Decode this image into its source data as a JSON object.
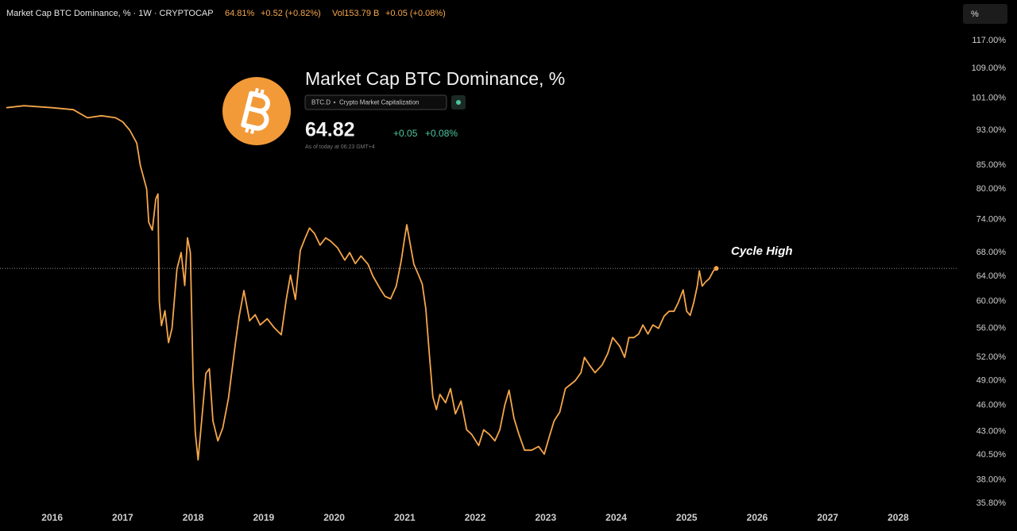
{
  "chart_data": {
    "type": "line",
    "title": "Market Cap BTC Dominance, %",
    "header": {
      "symbol": "Market Cap BTC Dominance, % · 1W · CRYPTOCAP",
      "last": "64.81%",
      "change": "+0.52 (+0.82%)",
      "volume": "Vol153.79 B",
      "volume_change": "+0.05 (+0.08%)"
    },
    "scale_button": "%",
    "card": {
      "ticker": "BTC.D",
      "source": "Crypto Market Capitalization",
      "price": "64.82",
      "change": "+0.05",
      "change_pct": "+0.08%",
      "timestamp": "As of today at 06:23 GMT+4"
    },
    "annotation": "Cycle High",
    "color": "#f5a64a",
    "log_scale": true,
    "x": [
      2015.35,
      2015.6,
      2016.0,
      2016.3,
      2016.5,
      2016.7,
      2016.9,
      2017.0,
      2017.1,
      2017.2,
      2017.25,
      2017.34,
      2017.37,
      2017.42,
      2017.47,
      2017.5,
      2017.52,
      2017.55,
      2017.6,
      2017.65,
      2017.7,
      2017.77,
      2017.83,
      2017.88,
      2017.92,
      2017.96,
      2018.0,
      2018.03,
      2018.07,
      2018.12,
      2018.18,
      2018.23,
      2018.28,
      2018.35,
      2018.42,
      2018.5,
      2018.6,
      2018.65,
      2018.72,
      2018.8,
      2018.88,
      2018.95,
      2019.05,
      2019.15,
      2019.25,
      2019.32,
      2019.38,
      2019.45,
      2019.52,
      2019.58,
      2019.65,
      2019.72,
      2019.8,
      2019.88,
      2019.95,
      2020.05,
      2020.15,
      2020.22,
      2020.3,
      2020.38,
      2020.48,
      2020.55,
      2020.65,
      2020.72,
      2020.8,
      2020.88,
      2020.95,
      2021.0,
      2021.03,
      2021.08,
      2021.13,
      2021.2,
      2021.25,
      2021.3,
      2021.35,
      2021.4,
      2021.45,
      2021.5,
      2021.58,
      2021.65,
      2021.72,
      2021.8,
      2021.88,
      2021.95,
      2022.05,
      2022.12,
      2022.2,
      2022.28,
      2022.35,
      2022.42,
      2022.48,
      2022.55,
      2022.62,
      2022.7,
      2022.8,
      2022.9,
      2022.98,
      2023.05,
      2023.12,
      2023.2,
      2023.28,
      2023.35,
      2023.42,
      2023.5,
      2023.55,
      2023.62,
      2023.7,
      2023.8,
      2023.88,
      2023.95,
      2024.05,
      2024.12,
      2024.18,
      2024.25,
      2024.32,
      2024.38,
      2024.45,
      2024.52,
      2024.6,
      2024.68,
      2024.75,
      2024.82,
      2024.88,
      2024.95,
      2025.0,
      2025.05,
      2025.1,
      2025.15,
      2025.18,
      2025.22,
      2025.27,
      2025.32,
      2025.38,
      2025.42
    ],
    "values": [
      98.5,
      99,
      98.5,
      98,
      96,
      96.5,
      96,
      95,
      93,
      90,
      85,
      80,
      73.5,
      72,
      78,
      79,
      60,
      56.4,
      58.6,
      54,
      56,
      65.2,
      68,
      62.5,
      70.6,
      68,
      49,
      42.9,
      40,
      44.2,
      49.9,
      50.5,
      44.2,
      42,
      43.4,
      46.8,
      54,
      57.6,
      61.7,
      57.1,
      58,
      56.5,
      57.4,
      56.1,
      55.1,
      60.3,
      64.2,
      60.3,
      68.4,
      70.3,
      72.4,
      71.4,
      69.3,
      70.6,
      70,
      68.8,
      66.7,
      68,
      66.1,
      67.4,
      66,
      64,
      62,
      60.8,
      60.4,
      62.4,
      66.5,
      70.6,
      73,
      69.4,
      66,
      64.1,
      62.7,
      58.9,
      52.4,
      47,
      45.5,
      47.3,
      46.3,
      48,
      45,
      46.5,
      43.2,
      42.7,
      41.5,
      43.2,
      42.7,
      42,
      43.2,
      46,
      47.8,
      44.5,
      42.7,
      41,
      41,
      41.4,
      40.6,
      42.4,
      44.2,
      45.2,
      48,
      48.5,
      49,
      50,
      52,
      51,
      50,
      51,
      52.5,
      54.7,
      53.5,
      52,
      54.7,
      54.7,
      55.2,
      56.5,
      55.2,
      56.5,
      56,
      57.8,
      58.5,
      58.5,
      59.8,
      61.8,
      58.5,
      57.9,
      59.8,
      62.4,
      64.9,
      62.4,
      63.1,
      63.6,
      64.9,
      65.3
    ],
    "xlim": [
      2015.26,
      2028.84
    ],
    "xticks": [
      2016,
      2017,
      2018,
      2019,
      2020,
      2021,
      2022,
      2023,
      2024,
      2025,
      2026,
      2027,
      2028
    ],
    "ylim": [
      35.8,
      117
    ],
    "yticks": [
      {
        "value": 117,
        "label": "117.00%"
      },
      {
        "value": 109,
        "label": "109.00%"
      },
      {
        "value": 101,
        "label": "101.00%"
      },
      {
        "value": 93,
        "label": "93.00%"
      },
      {
        "value": 85,
        "label": "85.00%"
      },
      {
        "value": 80,
        "label": "80.00%"
      },
      {
        "value": 74,
        "label": "74.00%"
      },
      {
        "value": 68,
        "label": "68.00%"
      },
      {
        "value": 64,
        "label": "64.00%"
      },
      {
        "value": 60,
        "label": "60.00%"
      },
      {
        "value": 56,
        "label": "56.00%"
      },
      {
        "value": 52,
        "label": "52.00%"
      },
      {
        "value": 49,
        "label": "49.00%"
      },
      {
        "value": 46,
        "label": "46.00%"
      },
      {
        "value": 43,
        "label": "43.00%"
      },
      {
        "value": 40.5,
        "label": "40.50%"
      },
      {
        "value": 38,
        "label": "38.00%"
      },
      {
        "value": 35.8,
        "label": "35.80%"
      }
    ]
  }
}
